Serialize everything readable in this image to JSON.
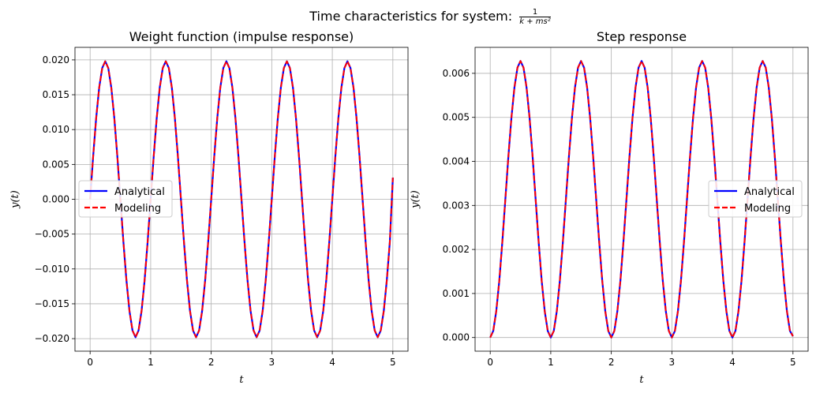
{
  "figure": {
    "suptitle_text": "Time characteristics for system:",
    "suptitle_num": "1",
    "suptitle_den": "k + ms²"
  },
  "chart_data": [
    {
      "type": "line",
      "title": "Weight function (impulse response)",
      "xlabel": "t",
      "ylabel": "y(t)",
      "xlim": [
        -0.25,
        5.25
      ],
      "ylim": [
        -0.0218,
        0.0218
      ],
      "xticks": [
        0,
        1,
        2,
        3,
        4,
        5
      ],
      "xtick_labels": [
        "0",
        "1",
        "2",
        "3",
        "4",
        "5"
      ],
      "yticks": [
        -0.02,
        -0.015,
        -0.01,
        -0.005,
        0.0,
        0.005,
        0.01,
        0.015,
        0.02
      ],
      "ytick_labels": [
        "−0.020",
        "−0.015",
        "−0.010",
        "−0.005",
        "0.000",
        "0.005",
        "0.010",
        "0.015",
        "0.020"
      ],
      "grid": true,
      "legend_position": "center-left",
      "series": [
        {
          "name": "Analytical",
          "color": "#0000ff",
          "style": "solid",
          "x": [
            0,
            0.05,
            0.1,
            0.15,
            0.2,
            0.25,
            0.3,
            0.35,
            0.4,
            0.45,
            0.5,
            0.55,
            0.6,
            0.65,
            0.7,
            0.75,
            0.8,
            0.85,
            0.9,
            0.95,
            1.0,
            1.05,
            1.1,
            1.15,
            1.2,
            1.25,
            1.3,
            1.35,
            1.4,
            1.45,
            1.5,
            1.55,
            1.6,
            1.65,
            1.7,
            1.75,
            1.8,
            1.85,
            1.9,
            1.95,
            2.0,
            2.05,
            2.1,
            2.15,
            2.2,
            2.25,
            2.3,
            2.35,
            2.4,
            2.45,
            2.5,
            2.55,
            2.6,
            2.65,
            2.7,
            2.75,
            2.8,
            2.85,
            2.9,
            2.95,
            3.0,
            3.05,
            3.1,
            3.15,
            3.2,
            3.25,
            3.3,
            3.35,
            3.4,
            3.45,
            3.5,
            3.55,
            3.6,
            3.65,
            3.7,
            3.75,
            3.8,
            3.85,
            3.9,
            3.95,
            4.0,
            4.05,
            4.1,
            4.15,
            4.2,
            4.25,
            4.3,
            4.35,
            4.4,
            4.45,
            4.5,
            4.55,
            4.6,
            4.65,
            4.7,
            4.75,
            4.8,
            4.85,
            4.9,
            4.95,
            5.0
          ],
          "y": [
            0.0,
            0.00612,
            0.01164,
            0.01602,
            0.01883,
            0.0198,
            0.01883,
            0.01602,
            0.01164,
            0.00612,
            0.0,
            -0.00612,
            -0.01164,
            -0.01602,
            -0.01883,
            -0.0198,
            -0.01883,
            -0.01602,
            -0.01164,
            -0.00612,
            0.0,
            0.00612,
            0.01164,
            0.01602,
            0.01883,
            0.0198,
            0.01883,
            0.01602,
            0.01164,
            0.00612,
            0.0,
            -0.00612,
            -0.01164,
            -0.01602,
            -0.01883,
            -0.0198,
            -0.01883,
            -0.01602,
            -0.01164,
            -0.00612,
            0.0,
            0.00612,
            0.01164,
            0.01602,
            0.01883,
            0.0198,
            0.01883,
            0.01602,
            0.01164,
            0.00612,
            0.0,
            -0.00612,
            -0.01164,
            -0.01602,
            -0.01883,
            -0.0198,
            -0.01883,
            -0.01602,
            -0.01164,
            -0.00612,
            0.0,
            0.00612,
            0.01164,
            0.01602,
            0.01883,
            0.0198,
            0.01883,
            0.01602,
            0.01164,
            0.00612,
            0.0,
            -0.00612,
            -0.01164,
            -0.01602,
            -0.01883,
            -0.0198,
            -0.01883,
            -0.01602,
            -0.01164,
            -0.00612,
            0.0,
            0.00612,
            0.01164,
            0.01602,
            0.01883,
            0.0198,
            0.01883,
            0.01602,
            0.01164,
            0.00612,
            0.0,
            -0.00612,
            -0.01164,
            -0.01602,
            -0.01883,
            -0.0198,
            -0.01883,
            -0.01602,
            -0.01164,
            -0.00612,
            0.0031
          ]
        },
        {
          "name": "Modeling",
          "color": "#ff0000",
          "style": "dashed",
          "x": [
            0,
            0.05,
            0.1,
            0.15,
            0.2,
            0.25,
            0.3,
            0.35,
            0.4,
            0.45,
            0.5,
            0.55,
            0.6,
            0.65,
            0.7,
            0.75,
            0.8,
            0.85,
            0.9,
            0.95,
            1.0,
            1.05,
            1.1,
            1.15,
            1.2,
            1.25,
            1.3,
            1.35,
            1.4,
            1.45,
            1.5,
            1.55,
            1.6,
            1.65,
            1.7,
            1.75,
            1.8,
            1.85,
            1.9,
            1.95,
            2.0,
            2.05,
            2.1,
            2.15,
            2.2,
            2.25,
            2.3,
            2.35,
            2.4,
            2.45,
            2.5,
            2.55,
            2.6,
            2.65,
            2.7,
            2.75,
            2.8,
            2.85,
            2.9,
            2.95,
            3.0,
            3.05,
            3.1,
            3.15,
            3.2,
            3.25,
            3.3,
            3.35,
            3.4,
            3.45,
            3.5,
            3.55,
            3.6,
            3.65,
            3.7,
            3.75,
            3.8,
            3.85,
            3.9,
            3.95,
            4.0,
            4.05,
            4.1,
            4.15,
            4.2,
            4.25,
            4.3,
            4.35,
            4.4,
            4.45,
            4.5,
            4.55,
            4.6,
            4.65,
            4.7,
            4.75,
            4.8,
            4.85,
            4.9,
            4.95,
            5.0
          ],
          "y": [
            0.0,
            0.00612,
            0.01164,
            0.01602,
            0.01883,
            0.0198,
            0.01883,
            0.01602,
            0.01164,
            0.00612,
            0.0,
            -0.00612,
            -0.01164,
            -0.01602,
            -0.01883,
            -0.0198,
            -0.01883,
            -0.01602,
            -0.01164,
            -0.00612,
            0.0,
            0.00612,
            0.01164,
            0.01602,
            0.01883,
            0.0198,
            0.01883,
            0.01602,
            0.01164,
            0.00612,
            0.0,
            -0.00612,
            -0.01164,
            -0.01602,
            -0.01883,
            -0.0198,
            -0.01883,
            -0.01602,
            -0.01164,
            -0.00612,
            0.0,
            0.00612,
            0.01164,
            0.01602,
            0.01883,
            0.0198,
            0.01883,
            0.01602,
            0.01164,
            0.00612,
            0.0,
            -0.00612,
            -0.01164,
            -0.01602,
            -0.01883,
            -0.0198,
            -0.01883,
            -0.01602,
            -0.01164,
            -0.00612,
            0.0,
            0.00612,
            0.01164,
            0.01602,
            0.01883,
            0.0198,
            0.01883,
            0.01602,
            0.01164,
            0.00612,
            0.0,
            -0.00612,
            -0.01164,
            -0.01602,
            -0.01883,
            -0.0198,
            -0.01883,
            -0.01602,
            -0.01164,
            -0.00612,
            0.0,
            0.00612,
            0.01164,
            0.01602,
            0.01883,
            0.0198,
            0.01883,
            0.01602,
            0.01164,
            0.00612,
            0.0,
            -0.00612,
            -0.01164,
            -0.01602,
            -0.01883,
            -0.0198,
            -0.01883,
            -0.01602,
            -0.01164,
            -0.00612,
            0.0031
          ]
        }
      ]
    },
    {
      "type": "line",
      "title": "Step response",
      "xlabel": "t",
      "ylabel": "y(t)",
      "xlim": [
        -0.25,
        5.25
      ],
      "ylim": [
        -0.00031,
        0.00659
      ],
      "xticks": [
        0,
        1,
        2,
        3,
        4,
        5
      ],
      "xtick_labels": [
        "0",
        "1",
        "2",
        "3",
        "4",
        "5"
      ],
      "yticks": [
        0.0,
        0.001,
        0.002,
        0.003,
        0.004,
        0.005,
        0.006
      ],
      "ytick_labels": [
        "0.000",
        "0.001",
        "0.002",
        "0.003",
        "0.004",
        "0.005",
        "0.006"
      ],
      "grid": true,
      "legend_position": "center-right",
      "series": [
        {
          "name": "Analytical",
          "color": "#0000ff",
          "style": "solid",
          "x": [
            0,
            0.05,
            0.1,
            0.15,
            0.2,
            0.25,
            0.3,
            0.35,
            0.4,
            0.45,
            0.5,
            0.55,
            0.6,
            0.65,
            0.7,
            0.75,
            0.8,
            0.85,
            0.9,
            0.95,
            1.0,
            1.05,
            1.1,
            1.15,
            1.2,
            1.25,
            1.3,
            1.35,
            1.4,
            1.45,
            1.5,
            1.55,
            1.6,
            1.65,
            1.7,
            1.75,
            1.8,
            1.85,
            1.9,
            1.95,
            2.0,
            2.05,
            2.1,
            2.15,
            2.2,
            2.25,
            2.3,
            2.35,
            2.4,
            2.45,
            2.5,
            2.55,
            2.6,
            2.65,
            2.7,
            2.75,
            2.8,
            2.85,
            2.9,
            2.95,
            3.0,
            3.05,
            3.1,
            3.15,
            3.2,
            3.25,
            3.3,
            3.35,
            3.4,
            3.45,
            3.5,
            3.55,
            3.6,
            3.65,
            3.7,
            3.75,
            3.8,
            3.85,
            3.9,
            3.95,
            4.0,
            4.05,
            4.1,
            4.15,
            4.2,
            4.25,
            4.3,
            4.35,
            4.4,
            4.45,
            4.5,
            4.55,
            4.6,
            4.65,
            4.7,
            4.75,
            4.8,
            4.85,
            4.9,
            4.95,
            5.0
          ],
          "y": [
            0.0,
            0.00015,
            0.0006,
            0.00129,
            0.00217,
            0.00314,
            0.00411,
            0.00499,
            0.00568,
            0.00613,
            0.00628,
            0.00613,
            0.00568,
            0.00499,
            0.00411,
            0.00314,
            0.00217,
            0.00129,
            0.0006,
            0.00015,
            0.0,
            0.00015,
            0.0006,
            0.00129,
            0.00217,
            0.00314,
            0.00411,
            0.00499,
            0.00568,
            0.00613,
            0.00628,
            0.00613,
            0.00568,
            0.00499,
            0.00411,
            0.00314,
            0.00217,
            0.00129,
            0.0006,
            0.00015,
            0.0,
            0.00015,
            0.0006,
            0.00129,
            0.00217,
            0.00314,
            0.00411,
            0.00499,
            0.00568,
            0.00613,
            0.00628,
            0.00613,
            0.00568,
            0.00499,
            0.00411,
            0.00314,
            0.00217,
            0.00129,
            0.0006,
            0.00015,
            0.0,
            0.00015,
            0.0006,
            0.00129,
            0.00217,
            0.00314,
            0.00411,
            0.00499,
            0.00568,
            0.00613,
            0.00628,
            0.00613,
            0.00568,
            0.00499,
            0.00411,
            0.00314,
            0.00217,
            0.00129,
            0.0006,
            0.00015,
            0.0,
            0.00015,
            0.0006,
            0.00129,
            0.00217,
            0.00314,
            0.00411,
            0.00499,
            0.00568,
            0.00613,
            0.00628,
            0.00613,
            0.00568,
            0.00499,
            0.00411,
            0.00314,
            0.00217,
            0.00129,
            0.0006,
            0.00015,
            3e-05
          ]
        },
        {
          "name": "Modeling",
          "color": "#ff0000",
          "style": "dashed",
          "x": [
            0,
            0.05,
            0.1,
            0.15,
            0.2,
            0.25,
            0.3,
            0.35,
            0.4,
            0.45,
            0.5,
            0.55,
            0.6,
            0.65,
            0.7,
            0.75,
            0.8,
            0.85,
            0.9,
            0.95,
            1.0,
            1.05,
            1.1,
            1.15,
            1.2,
            1.25,
            1.3,
            1.35,
            1.4,
            1.45,
            1.5,
            1.55,
            1.6,
            1.65,
            1.7,
            1.75,
            1.8,
            1.85,
            1.9,
            1.95,
            2.0,
            2.05,
            2.1,
            2.15,
            2.2,
            2.25,
            2.3,
            2.35,
            2.4,
            2.45,
            2.5,
            2.55,
            2.6,
            2.65,
            2.7,
            2.75,
            2.8,
            2.85,
            2.9,
            2.95,
            3.0,
            3.05,
            3.1,
            3.15,
            3.2,
            3.25,
            3.3,
            3.35,
            3.4,
            3.45,
            3.5,
            3.55,
            3.6,
            3.65,
            3.7,
            3.75,
            3.8,
            3.85,
            3.9,
            3.95,
            4.0,
            4.05,
            4.1,
            4.15,
            4.2,
            4.25,
            4.3,
            4.35,
            4.4,
            4.45,
            4.5,
            4.55,
            4.6,
            4.65,
            4.7,
            4.75,
            4.8,
            4.85,
            4.9,
            4.95,
            5.0
          ],
          "y": [
            0.0,
            0.00015,
            0.0006,
            0.00129,
            0.00217,
            0.00314,
            0.00411,
            0.00499,
            0.00568,
            0.00613,
            0.00628,
            0.00613,
            0.00568,
            0.00499,
            0.00411,
            0.00314,
            0.00217,
            0.00129,
            0.0006,
            0.00015,
            0.0,
            0.00015,
            0.0006,
            0.00129,
            0.00217,
            0.00314,
            0.00411,
            0.00499,
            0.00568,
            0.00613,
            0.00628,
            0.00613,
            0.00568,
            0.00499,
            0.00411,
            0.00314,
            0.00217,
            0.00129,
            0.0006,
            0.00015,
            0.0,
            0.00015,
            0.0006,
            0.00129,
            0.00217,
            0.00314,
            0.00411,
            0.00499,
            0.00568,
            0.00613,
            0.00628,
            0.00613,
            0.00568,
            0.00499,
            0.00411,
            0.00314,
            0.00217,
            0.00129,
            0.0006,
            0.00015,
            0.0,
            0.00015,
            0.0006,
            0.00129,
            0.00217,
            0.00314,
            0.00411,
            0.00499,
            0.00568,
            0.00613,
            0.00628,
            0.00613,
            0.00568,
            0.00499,
            0.00411,
            0.00314,
            0.00217,
            0.00129,
            0.0006,
            0.00015,
            0.0,
            0.00015,
            0.0006,
            0.00129,
            0.00217,
            0.00314,
            0.00411,
            0.00499,
            0.00568,
            0.00613,
            0.00628,
            0.00613,
            0.00568,
            0.00499,
            0.00411,
            0.00314,
            0.00217,
            0.00129,
            0.0006,
            0.00015,
            3e-05
          ]
        }
      ]
    }
  ]
}
